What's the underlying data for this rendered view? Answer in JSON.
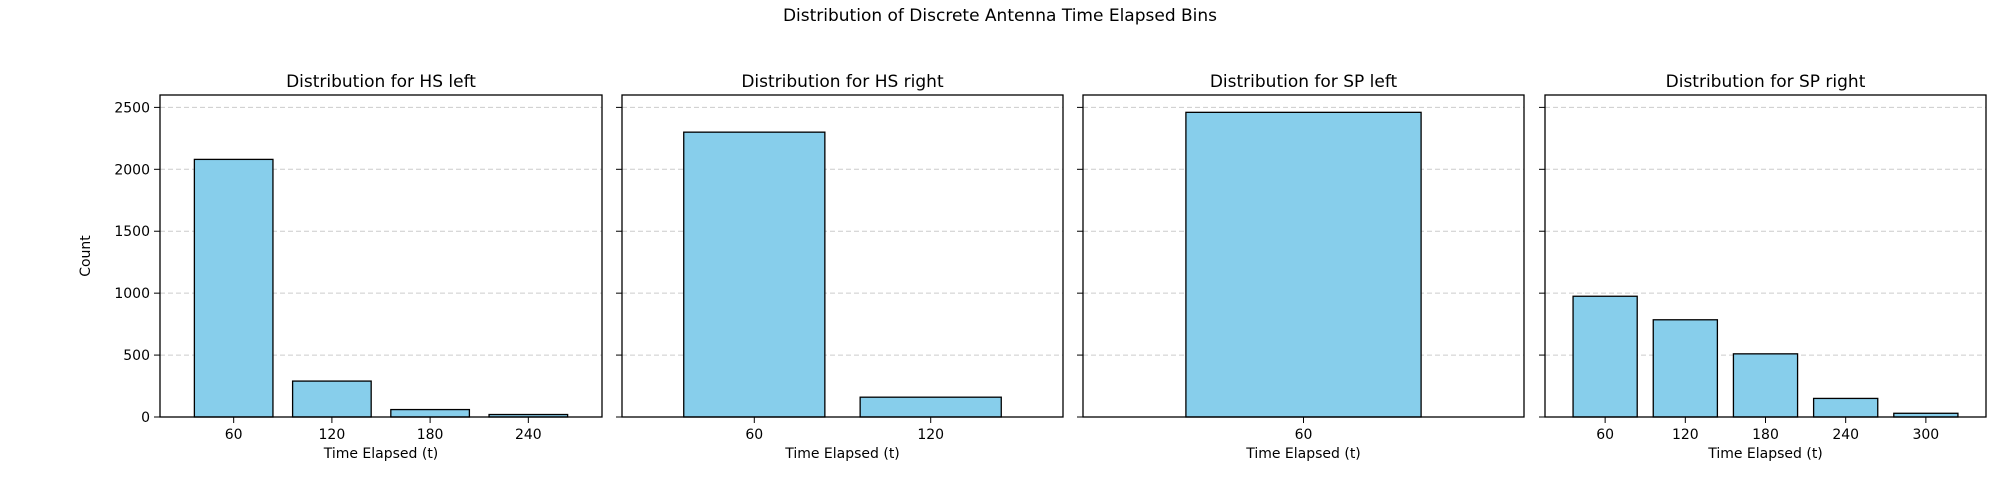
{
  "figure": {
    "title": "Distribution of Discrete Antenna Time Elapsed Bins",
    "shared_ylabel": "Count",
    "bar_color": "#87CEEB",
    "edge_color": "#000000",
    "grid_color": "#cccccc"
  },
  "chart_data": [
    {
      "type": "bar",
      "title": "Distribution for HS left",
      "xlabel": "Time Elapsed (t)",
      "ylabel": "Count",
      "categories": [
        "60",
        "120",
        "180",
        "240"
      ],
      "values": [
        2080,
        290,
        60,
        20
      ],
      "ylim": [
        0,
        2600
      ],
      "yticks": [
        0,
        500,
        1000,
        1500,
        2000,
        2500
      ],
      "grid": "y-dashed"
    },
    {
      "type": "bar",
      "title": "Distribution for HS right",
      "xlabel": "Time Elapsed (t)",
      "categories": [
        "60",
        "120"
      ],
      "values": [
        2300,
        160
      ],
      "ylim": [
        0,
        2600
      ],
      "yticks": [
        0,
        500,
        1000,
        1500,
        2000,
        2500
      ],
      "grid": "y-dashed"
    },
    {
      "type": "bar",
      "title": "Distribution for SP left",
      "xlabel": "Time Elapsed (t)",
      "categories": [
        "60"
      ],
      "values": [
        2460
      ],
      "ylim": [
        0,
        2600
      ],
      "yticks": [
        0,
        500,
        1000,
        1500,
        2000,
        2500
      ],
      "grid": "y-dashed"
    },
    {
      "type": "bar",
      "title": "Distribution for SP right",
      "xlabel": "Time Elapsed (t)",
      "categories": [
        "60",
        "120",
        "180",
        "240",
        "300"
      ],
      "values": [
        975,
        785,
        510,
        150,
        30
      ],
      "ylim": [
        0,
        2600
      ],
      "yticks": [
        0,
        500,
        1000,
        1500,
        2000,
        2500
      ],
      "grid": "y-dashed"
    }
  ]
}
